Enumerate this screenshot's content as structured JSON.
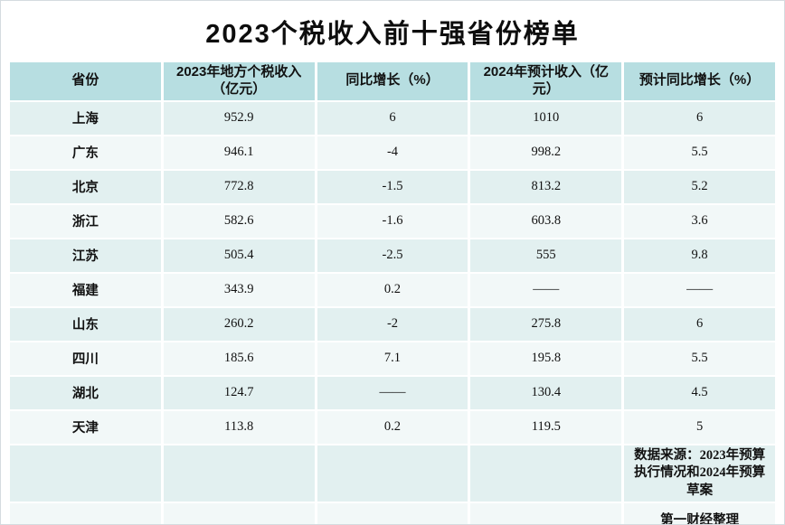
{
  "title": "2023个税收入前十强省份榜单",
  "colors": {
    "page_bg": "#ffffff",
    "header_bg": "#b7dee1",
    "row_odd": "#e2f0f0",
    "row_even": "#f2f8f8",
    "text": "#111111"
  },
  "table": {
    "headers": [
      "省份",
      "2023年地方个税收入（亿元）",
      "同比增长（%）",
      "2024年预计收入（亿元）",
      "预计同比增长（%）"
    ],
    "rows": [
      [
        "上海",
        "952.9",
        "6",
        "1010",
        "6"
      ],
      [
        "广东",
        "946.1",
        "-4",
        "998.2",
        "5.5"
      ],
      [
        "北京",
        "772.8",
        "-1.5",
        "813.2",
        "5.2"
      ],
      [
        "浙江",
        "582.6",
        "-1.6",
        "603.8",
        "3.6"
      ],
      [
        "江苏",
        "505.4",
        "-2.5",
        "555",
        "9.8"
      ],
      [
        "福建",
        "343.9",
        "0.2",
        "——",
        "——"
      ],
      [
        "山东",
        "260.2",
        "-2",
        "275.8",
        "6"
      ],
      [
        "四川",
        "185.6",
        "7.1",
        "195.8",
        "5.5"
      ],
      [
        "湖北",
        "124.7",
        "——",
        "130.4",
        "4.5"
      ],
      [
        "天津",
        "113.8",
        "0.2",
        "119.5",
        "5"
      ]
    ]
  },
  "footer": {
    "source": "数据来源：2023年预算执行情况和2024年预算草案",
    "credit": "第一财经整理"
  },
  "chart_data": {
    "type": "table",
    "title": "2023个税收入前十强省份榜单",
    "columns": [
      "省份",
      "2023年地方个税收入（亿元）",
      "同比增长（%）",
      "2024年预计收入（亿元）",
      "预计同比增长（%）"
    ],
    "rows": [
      [
        "上海",
        952.9,
        6,
        1010,
        6
      ],
      [
        "广东",
        946.1,
        -4,
        998.2,
        5.5
      ],
      [
        "北京",
        772.8,
        -1.5,
        813.2,
        5.2
      ],
      [
        "浙江",
        582.6,
        -1.6,
        603.8,
        3.6
      ],
      [
        "江苏",
        505.4,
        -2.5,
        555,
        9.8
      ],
      [
        "福建",
        343.9,
        0.2,
        null,
        null
      ],
      [
        "山东",
        260.2,
        -2,
        275.8,
        6
      ],
      [
        "四川",
        185.6,
        7.1,
        195.8,
        5.5
      ],
      [
        "湖北",
        124.7,
        null,
        130.4,
        4.5
      ],
      [
        "天津",
        113.8,
        0.2,
        119.5,
        5
      ]
    ],
    "missing_value_marker": "——",
    "source": "数据来源：2023年预算执行情况和2024年预算草案",
    "credit": "第一财经整理"
  }
}
